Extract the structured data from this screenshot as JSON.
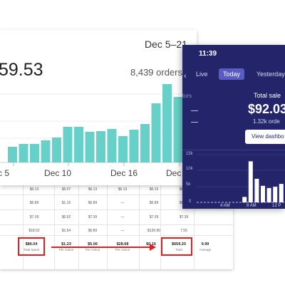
{
  "dashboard": {
    "date_range": "Dec 5–21",
    "total": "59.53",
    "orders": "8,439 orders",
    "x_ticks": [
      "c 5",
      "Dec 10",
      "Dec 16",
      "Dec"
    ],
    "bar_color": "#67d1c9"
  },
  "chart_data": [
    {
      "type": "bar",
      "x_tick_labels": [
        "c 5",
        "Dec 10",
        "Dec 16",
        "Dec"
      ],
      "values": [
        22,
        26,
        26,
        31,
        35,
        50,
        50,
        43,
        44,
        47,
        37,
        46,
        54,
        83,
        110,
        92,
        27
      ]
    },
    {
      "type": "bar",
      "y_tick_labels": [
        "15k",
        "10k",
        "5k",
        "0"
      ],
      "x_tick_labels": [
        "4 AM",
        "8 AM",
        "12 P"
      ],
      "values": [
        0,
        0,
        0,
        0,
        0,
        0,
        0,
        1700,
        12900,
        7400,
        5200,
        4500,
        4900,
        5800,
        1000
      ]
    }
  ],
  "phone": {
    "time": "11:39",
    "tabs": [
      "Live",
      "Today",
      "Yesterday"
    ],
    "active_tab": "Today",
    "visitors_label": "itors",
    "total_sales_label": "Total sale",
    "total_sales_value": "$92.03",
    "orders_sub": "1.32k orde",
    "view_button": "View dashbo",
    "y_ticks": [
      "15k",
      "10k",
      "5k",
      "0"
    ],
    "x_ticks": [
      "4 AM",
      "8 AM",
      "12 P"
    ],
    "bg_color": "#23246a",
    "bar_color": "#ffffff"
  },
  "sheet": {
    "rows": [
      [
        "$6.13",
        "$5.07",
        "$6.13",
        "$6.13",
        "$6.15",
        "$6.15",
        ""
      ],
      [
        "$6.89",
        "$1.15",
        "$6.89",
        "—",
        "$6.89",
        "$6.89",
        ""
      ],
      [
        "$7.39",
        "$0.92",
        "$7.39",
        "—",
        "$7.39",
        "$7.39",
        ""
      ],
      [
        "$18.52",
        "$1.54",
        "$6.89",
        "—",
        "$139.90",
        "7.55",
        ""
      ]
    ],
    "totals": [
      "$86.04",
      "$1.23",
      "$5.06",
      "$28.68",
      "$0.16",
      "$659.20",
      "9.99"
    ],
    "total_labels": [
      "Total Spent",
      "Per Action",
      "Per Action",
      "Per Action",
      "",
      "Total",
      "Average"
    ],
    "highlight_color": "#e02020"
  }
}
